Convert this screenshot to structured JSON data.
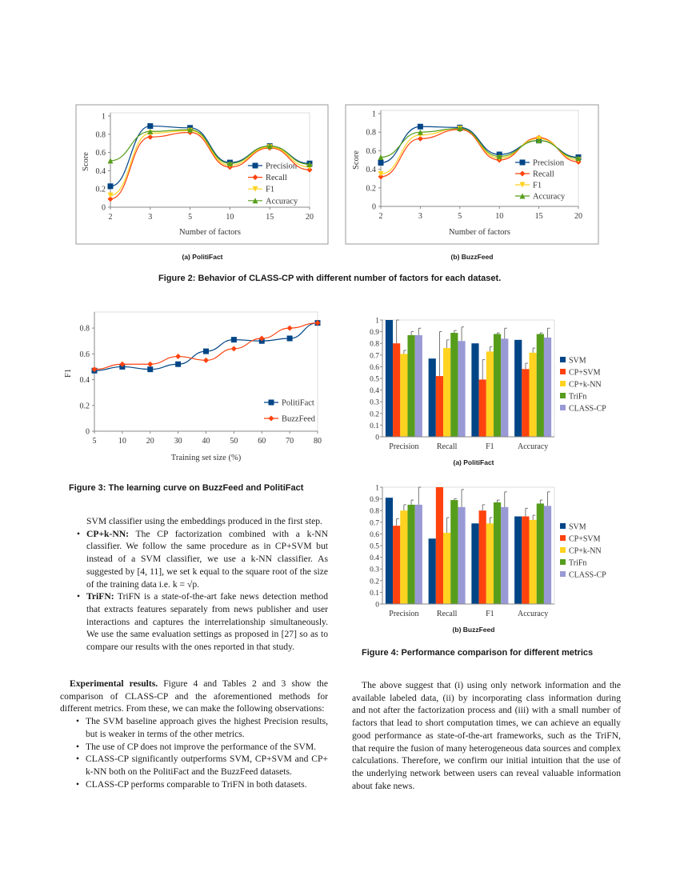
{
  "chart_data": [
    {
      "id": "fig2a",
      "type": "line",
      "subcaption": "(a) PolitiFact",
      "xlabel": "Number of factors",
      "ylabel": "Score",
      "x": [
        2,
        3,
        5,
        10,
        15,
        20
      ],
      "ylim": [
        0,
        1
      ],
      "yticks": [
        "0",
        "0.2",
        "0.4",
        "0.6",
        "0.8",
        "1"
      ],
      "legend": "right",
      "series": [
        {
          "name": "Precision",
          "color": "#004586",
          "marker": "square",
          "values": [
            0.23,
            0.89,
            0.87,
            0.49,
            0.67,
            0.48
          ]
        },
        {
          "name": "Recall",
          "color": "#ff420e",
          "marker": "diamond",
          "values": [
            0.09,
            0.77,
            0.82,
            0.44,
            0.65,
            0.41
          ]
        },
        {
          "name": "F1",
          "color": "#ffd320",
          "marker": "triangle-down",
          "values": [
            0.13,
            0.81,
            0.84,
            0.46,
            0.66,
            0.44
          ]
        },
        {
          "name": "Accuracy",
          "color": "#579d1c",
          "marker": "triangle-up",
          "values": [
            0.51,
            0.83,
            0.85,
            0.48,
            0.67,
            0.47
          ]
        }
      ]
    },
    {
      "id": "fig2b",
      "type": "line",
      "subcaption": "(b) BuzzFeed",
      "xlabel": "Number of factors",
      "ylabel": "Score",
      "x": [
        2,
        3,
        5,
        10,
        15,
        20
      ],
      "ylim": [
        0,
        1
      ],
      "yticks": [
        "0",
        "0.2",
        "0.4",
        "0.6",
        "0.8",
        "1"
      ],
      "legend": "right",
      "series": [
        {
          "name": "Precision",
          "color": "#004586",
          "marker": "square",
          "values": [
            0.47,
            0.86,
            0.85,
            0.56,
            0.71,
            0.53
          ]
        },
        {
          "name": "Recall",
          "color": "#ff420e",
          "marker": "diamond",
          "values": [
            0.32,
            0.73,
            0.83,
            0.5,
            0.74,
            0.48
          ]
        },
        {
          "name": "F1",
          "color": "#ffd320",
          "marker": "triangle-down",
          "values": [
            0.35,
            0.77,
            0.84,
            0.52,
            0.73,
            0.5
          ]
        },
        {
          "name": "Accuracy",
          "color": "#579d1c",
          "marker": "triangle-up",
          "values": [
            0.53,
            0.8,
            0.84,
            0.54,
            0.71,
            0.52
          ]
        }
      ]
    },
    {
      "id": "fig3",
      "type": "line",
      "xlabel": "Training set size (%)",
      "ylabel": "F1",
      "x": [
        5,
        10,
        20,
        30,
        40,
        50,
        60,
        70,
        80
      ],
      "ylim": [
        0,
        0.9
      ],
      "yticks": [
        "0",
        "0.2",
        "0.4",
        "0.6",
        "0.8"
      ],
      "legend": "bottom-right",
      "series": [
        {
          "name": "PolitiFact",
          "color": "#004586",
          "marker": "square",
          "values": [
            0.47,
            0.5,
            0.48,
            0.52,
            0.62,
            0.71,
            0.7,
            0.72,
            0.84
          ]
        },
        {
          "name": "BuzzFeed",
          "color": "#ff420e",
          "marker": "diamond",
          "values": [
            0.48,
            0.52,
            0.52,
            0.58,
            0.55,
            0.64,
            0.72,
            0.8,
            0.84
          ]
        }
      ]
    },
    {
      "id": "fig4a",
      "type": "bar",
      "subcaption": "(a) PolitiFact",
      "categories": [
        "Precision",
        "Recall",
        "F1",
        "Accuracy"
      ],
      "ylim": [
        0,
        1
      ],
      "yticks": [
        "0",
        "0.1",
        "0.2",
        "0.3",
        "0.4",
        "0.5",
        "0.6",
        "0.7",
        "0.8",
        "0.9",
        "1"
      ],
      "legend": "right",
      "series": [
        {
          "name": "SVM",
          "color": "#004586",
          "values": [
            1.0,
            0.67,
            0.8,
            0.83
          ],
          "error_upper": [
            null,
            null,
            null,
            null
          ]
        },
        {
          "name": "CP+SVM",
          "color": "#ff420e",
          "values": [
            0.8,
            0.52,
            0.49,
            0.58
          ],
          "error_upper": [
            1.0,
            0.9,
            0.66,
            0.63
          ]
        },
        {
          "name": "CP+k-NN",
          "color": "#ffd320",
          "values": [
            0.71,
            0.76,
            0.73,
            0.72
          ],
          "error_upper": [
            0.74,
            0.83,
            0.77,
            0.76
          ]
        },
        {
          "name": "TriFn",
          "color": "#579d1c",
          "values": [
            0.87,
            0.89,
            0.88,
            0.88
          ],
          "error_upper": [
            0.9,
            0.91,
            0.89,
            0.89
          ]
        },
        {
          "name": "CLASS-CP",
          "color": "#9999d6",
          "values": [
            0.87,
            0.82,
            0.84,
            0.85
          ],
          "error_upper": [
            0.93,
            0.94,
            0.93,
            0.93
          ]
        }
      ]
    },
    {
      "id": "fig4b",
      "type": "bar",
      "subcaption": "(b) BuzzFeed",
      "categories": [
        "Precision",
        "Recall",
        "F1",
        "Accuracy"
      ],
      "ylim": [
        0,
        1
      ],
      "yticks": [
        "0",
        "0.1",
        "0.2",
        "0.3",
        "0.4",
        "0.5",
        "0.6",
        "0.7",
        "0.8",
        "0.9",
        "1"
      ],
      "legend": "right",
      "series": [
        {
          "name": "SVM",
          "color": "#004586",
          "values": [
            0.91,
            0.56,
            0.69,
            0.75
          ],
          "error_upper": [
            null,
            null,
            null,
            null
          ]
        },
        {
          "name": "CP+SVM",
          "color": "#ff420e",
          "values": [
            0.67,
            1.0,
            0.8,
            0.75
          ],
          "error_upper": [
            0.73,
            1.0,
            0.85,
            0.82
          ]
        },
        {
          "name": "CP+k-NN",
          "color": "#ffd320",
          "values": [
            0.8,
            0.61,
            0.69,
            0.72
          ],
          "error_upper": [
            0.85,
            0.74,
            0.74,
            0.76
          ]
        },
        {
          "name": "TriFn",
          "color": "#579d1c",
          "values": [
            0.85,
            0.89,
            0.87,
            0.86
          ],
          "error_upper": [
            0.89,
            0.9,
            0.89,
            0.89
          ]
        },
        {
          "name": "CLASS-CP",
          "color": "#9999d6",
          "values": [
            0.85,
            0.83,
            0.83,
            0.84
          ],
          "error_upper": [
            1.0,
            0.98,
            0.96,
            0.96
          ]
        }
      ]
    }
  ],
  "captions": {
    "fig2": "Figure 2: Behavior of CLASS-CP with different number of factors for each dataset.",
    "fig3": "Figure 3: The learning curve on BuzzFeed and PolitiFact",
    "fig4": "Figure 4: Performance comparison for different metrics"
  },
  "left_column": {
    "cont": "SVM classifier using the embeddings produced in the first step.",
    "bullets": [
      {
        "label": "CP+k-NN:",
        "text": "The CP factorization combined with a k-NN classifier. We follow the same procedure as in CP+SVM but instead of a SVM classifier, we use a k-NN classifier. As suggested by [4, 11], we set k equal to the square root of the size of the training data i.e. k = √p."
      },
      {
        "label": "TriFN:",
        "text": "TriFN is a state-of-the-art fake news detection method that extracts features separately from news publisher and user interactions and captures the interrelationship simultaneously. We use the same evaluation settings as proposed in [27] so as to compare our results with the ones reported in that study."
      }
    ],
    "results_heading": "Experimental results.",
    "results_text": "Figure 4 and Tables 2 and 3 show the comparison of CLASS-CP and the aforementioned methods for different metrics. From these, we can make the following observations:",
    "observations": [
      "The SVM baseline approach gives the highest Precision results, but is weaker in terms of the other metrics.",
      "The use of CP does not improve the performance of the SVM.",
      "CLASS-CP significantly outperforms SVM, CP+SVM and CP+ k-NN both on the PolitiFact and the BuzzFeed datasets.",
      "CLASS-CP performs comparable to TriFN in both datasets."
    ]
  },
  "right_column": {
    "paragraph": "The above suggest that (i) using only network information and the available labeled data, (ii) by incorporating class information during and not after the factorization process and (iii) with a small number of factors that lead to short computation times, we can achieve an equally good performance as state-of-the-art frameworks, such as the TriFN, that require the fusion of many heterogeneous data sources and complex calculations. Therefore, we confirm our initial intuition that the use of the underlying network between users can reveal valuable information about fake news."
  }
}
